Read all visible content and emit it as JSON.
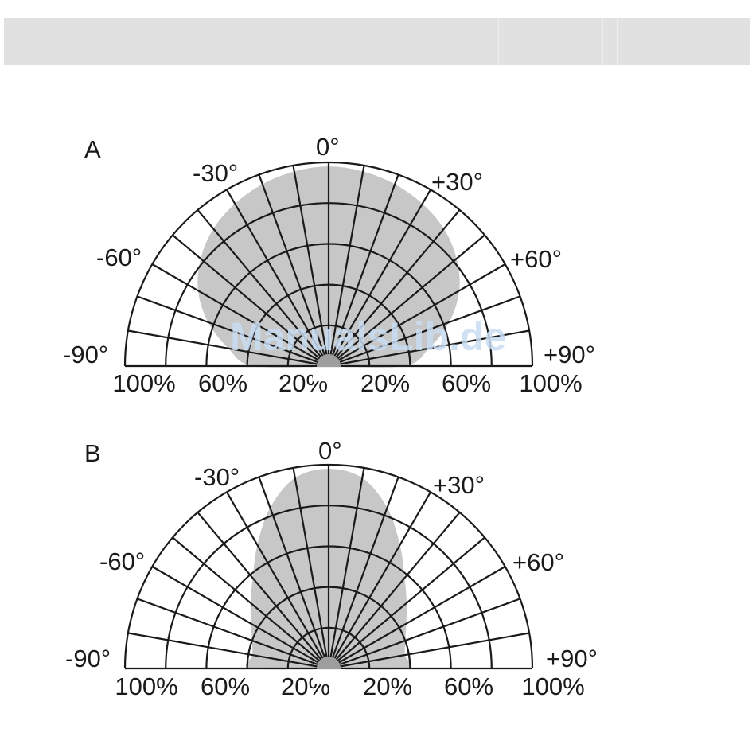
{
  "header_bar": {},
  "watermark": {
    "text": "ManualsLib.de"
  },
  "diagrams": [
    {
      "id": "A",
      "label": "A",
      "angle_labels": {
        "top": "0°",
        "left30": "-30°",
        "right30": "+30°",
        "left60": "-60°",
        "right60": "+60°",
        "left90": "-90°",
        "right90": "+90°"
      },
      "radial_labels": [
        "100%",
        "60%",
        "20%",
        "20%",
        "60%",
        "100%"
      ],
      "pattern": [
        {
          "angle": -90,
          "percent": 37
        },
        {
          "angle": -80,
          "percent": 50
        },
        {
          "angle": -70,
          "percent": 63
        },
        {
          "angle": -60,
          "percent": 74
        },
        {
          "angle": -50,
          "percent": 82
        },
        {
          "angle": -40,
          "percent": 88
        },
        {
          "angle": -30,
          "percent": 92
        },
        {
          "angle": -20,
          "percent": 95
        },
        {
          "angle": -10,
          "percent": 97
        },
        {
          "angle": 0,
          "percent": 98
        },
        {
          "angle": 10,
          "percent": 97
        },
        {
          "angle": 20,
          "percent": 95
        },
        {
          "angle": 30,
          "percent": 92
        },
        {
          "angle": 40,
          "percent": 88
        },
        {
          "angle": 50,
          "percent": 82
        },
        {
          "angle": 60,
          "percent": 74
        },
        {
          "angle": 70,
          "percent": 63
        },
        {
          "angle": 80,
          "percent": 50
        },
        {
          "angle": 90,
          "percent": 37
        }
      ]
    },
    {
      "id": "B",
      "label": "B",
      "angle_labels": {
        "top": "0°",
        "left30": "-30°",
        "right30": "+30°",
        "left60": "-60°",
        "right60": "+60°",
        "left90": "-90°",
        "right90": "+90°"
      },
      "radial_labels": [
        "100%",
        "60%",
        "20%",
        "20%",
        "60%",
        "100%"
      ],
      "pattern": [
        {
          "angle": -90,
          "percent": 38
        },
        {
          "angle": -80,
          "percent": 38
        },
        {
          "angle": -70,
          "percent": 40
        },
        {
          "angle": -60,
          "percent": 44
        },
        {
          "angle": -50,
          "percent": 50
        },
        {
          "angle": -40,
          "percent": 58
        },
        {
          "angle": -30,
          "percent": 70
        },
        {
          "angle": -20,
          "percent": 84
        },
        {
          "angle": -10,
          "percent": 95
        },
        {
          "angle": 0,
          "percent": 98
        },
        {
          "angle": 10,
          "percent": 95
        },
        {
          "angle": 20,
          "percent": 84
        },
        {
          "angle": 30,
          "percent": 70
        },
        {
          "angle": 40,
          "percent": 58
        },
        {
          "angle": 50,
          "percent": 50
        },
        {
          "angle": 60,
          "percent": 44
        },
        {
          "angle": 70,
          "percent": 40
        },
        {
          "angle": 80,
          "percent": 38
        },
        {
          "angle": 90,
          "percent": 38
        }
      ]
    }
  ],
  "colors": {
    "grid": "#1a1a1a",
    "fill": "#c7c7c7",
    "hub": "#9e9e9e",
    "text": "#1a1a1a",
    "header_bar": "#e1e1e1",
    "watermark": "#c8dcf2"
  }
}
